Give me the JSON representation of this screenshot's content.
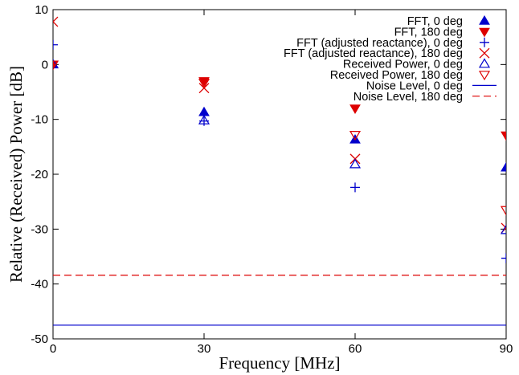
{
  "chart_data": {
    "type": "scatter",
    "title": "",
    "xlabel": "Frequency [MHz]",
    "ylabel": "Relative (Received) Power [dB]",
    "xlim": [
      0,
      90
    ],
    "ylim": [
      -50,
      10
    ],
    "xticks": [
      0,
      30,
      60,
      90
    ],
    "yticks": [
      10,
      0,
      -10,
      -20,
      -30,
      -40,
      -50
    ],
    "grid": false,
    "legend_position": "top-right",
    "series": [
      {
        "name": "FFT, 0 deg",
        "marker": "triangle-up-filled",
        "color": "#0000cc",
        "points": [
          [
            0,
            0
          ],
          [
            30,
            -8.7
          ],
          [
            60,
            -13.7
          ],
          [
            90,
            -18.8
          ]
        ]
      },
      {
        "name": "FFT, 180 deg",
        "marker": "triangle-down-filled",
        "color": "#dd0000",
        "points": [
          [
            0,
            0
          ],
          [
            30,
            -3.0
          ],
          [
            60,
            -8.0
          ],
          [
            90,
            -12.9
          ]
        ]
      },
      {
        "name": "FFT (adjusted reactance), 0 deg",
        "marker": "plus",
        "color": "#0000cc",
        "points": [
          [
            0,
            3.6
          ],
          [
            30,
            -10.3
          ],
          [
            60,
            -22.4
          ],
          [
            90,
            -35.3
          ]
        ]
      },
      {
        "name": "FFT (adjusted reactance), 180 deg",
        "marker": "cross",
        "color": "#dd0000",
        "points": [
          [
            0,
            7.8
          ],
          [
            30,
            -4.3
          ],
          [
            60,
            -17.2
          ],
          [
            90,
            -29.8
          ]
        ]
      },
      {
        "name": "Received Power, 0 deg",
        "marker": "triangle-up-open",
        "color": "#0000cc",
        "points": [
          [
            0,
            0
          ],
          [
            30,
            -10.2
          ],
          [
            60,
            -18.2
          ],
          [
            90,
            -30.2
          ]
        ]
      },
      {
        "name": "Received Power, 180 deg",
        "marker": "triangle-down-open",
        "color": "#dd0000",
        "points": [
          [
            0,
            0
          ],
          [
            30,
            -3.3
          ],
          [
            60,
            -12.8
          ],
          [
            90,
            -26.5
          ]
        ]
      },
      {
        "name": "Noise Level, 0 deg",
        "line": "solid",
        "color": "#0000cc",
        "value": -47.5
      },
      {
        "name": "Noise Level, 180 deg",
        "line": "dashed",
        "color": "#dd0000",
        "value": -38.4
      }
    ]
  }
}
